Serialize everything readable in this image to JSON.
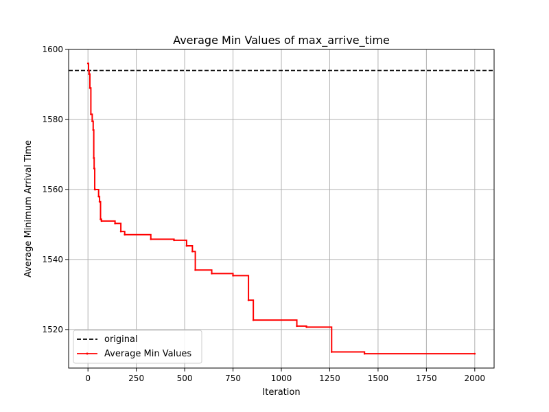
{
  "chart_data": {
    "type": "line",
    "title": "Average Min Values of max_arrive_time",
    "xlabel": "Iteration",
    "ylabel": "Average Minimum Arrival Time",
    "xlim": [
      -100,
      2100
    ],
    "ylim": [
      1509,
      1600
    ],
    "xticks": [
      0,
      250,
      500,
      750,
      1000,
      1250,
      1500,
      1750,
      2000
    ],
    "yticks": [
      1520,
      1540,
      1560,
      1580,
      1600
    ],
    "grid": true,
    "legend_position": "lower-left",
    "series": [
      {
        "name": "original",
        "style": "dashed",
        "color": "#000000",
        "y_constant": 1594
      },
      {
        "name": "Average Min Values",
        "style": "solid-step",
        "color": "#ff0000",
        "x": [
          0,
          3,
          6,
          10,
          15,
          22,
          27,
          30,
          32,
          35,
          38,
          55,
          60,
          65,
          70,
          140,
          170,
          190,
          325,
          445,
          510,
          540,
          555,
          640,
          750,
          830,
          855,
          1080,
          1130,
          1260,
          1430,
          2000
        ],
        "y": [
          1596,
          1594,
          1593,
          1589,
          1581.5,
          1579.5,
          1577,
          1569,
          1566,
          1560,
          1560,
          1558,
          1556.5,
          1551.5,
          1551,
          1550.3,
          1548,
          1547.1,
          1545.8,
          1545.5,
          1543.9,
          1542.3,
          1537,
          1536,
          1535.4,
          1528.4,
          1522.7,
          1521,
          1520.7,
          1513.6,
          1513.1,
          1513.1
        ]
      }
    ]
  }
}
